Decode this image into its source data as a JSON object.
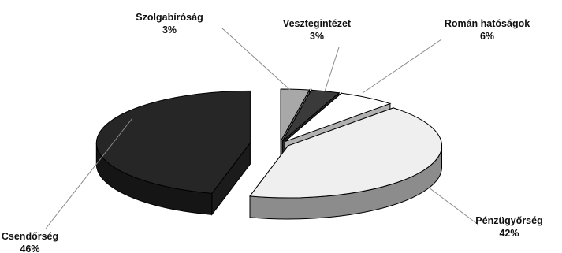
{
  "chart_data": {
    "type": "pie",
    "style": "3d-exploded",
    "legend": "none",
    "slices": [
      {
        "label": "Szolgabíróság",
        "value": 3,
        "value_label": "3%",
        "color": "#a8a8a8"
      },
      {
        "label": "Vesztegintézet",
        "value": 3,
        "value_label": "3%",
        "color": "#3a3a3a"
      },
      {
        "label": "Román hatóságok",
        "value": 6,
        "value_label": "6%",
        "color": "#ffffff"
      },
      {
        "label": "Pénzügyőrség",
        "value": 42,
        "value_label": "42%",
        "color": "#efefef"
      },
      {
        "label": "Csendőrség",
        "value": 46,
        "value_label": "46%",
        "color": "#262626"
      }
    ]
  }
}
